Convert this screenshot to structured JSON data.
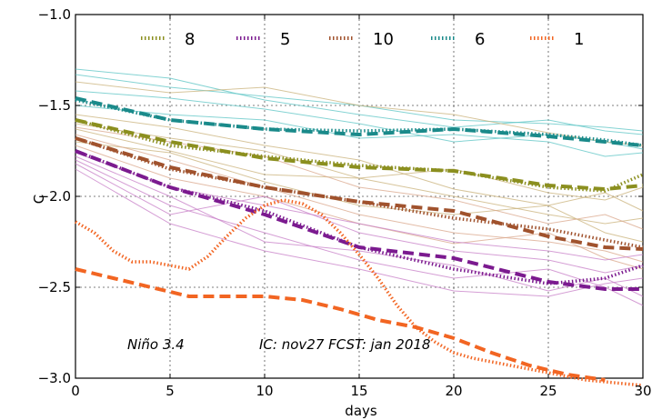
{
  "chart_data": {
    "type": "line",
    "xlabel": "days",
    "ylabel": "C",
    "xlim": [
      0,
      30
    ],
    "ylim": [
      -3.0,
      -1.0
    ],
    "xticks": [
      0,
      5,
      10,
      15,
      20,
      25,
      30
    ],
    "yticks": [
      -1.0,
      -1.5,
      -2.0,
      -2.5,
      -3.0
    ],
    "xtick_labels": [
      "0",
      "5",
      "10",
      "15",
      "20",
      "25",
      "30"
    ],
    "ytick_labels": [
      "−1.0",
      "−1.5",
      "−2.0",
      "−2.5",
      "−3.0"
    ],
    "grid": true,
    "legend_position": "top",
    "annotations": [
      "Niño 3.4",
      "IC: nov27  FCST: jan 2018"
    ],
    "series": [
      {
        "name": "8",
        "color": "#8b8f1f",
        "x": [
          0,
          5,
          10,
          15,
          20,
          25,
          28,
          30
        ],
        "dotted": [
          -1.58,
          -1.72,
          -1.78,
          -1.83,
          -1.86,
          -1.95,
          -1.97,
          -1.88
        ],
        "dashed": [
          -1.58,
          -1.7,
          -1.79,
          -1.84,
          -1.86,
          -1.94,
          -1.96,
          -1.94
        ]
      },
      {
        "name": "5",
        "color": "#7b1a8f",
        "x": [
          0,
          5,
          10,
          15,
          20,
          25,
          28,
          30
        ],
        "dotted": [
          -1.75,
          -1.95,
          -2.08,
          -2.28,
          -2.4,
          -2.48,
          -2.45,
          -2.38
        ],
        "dashed": [
          -1.75,
          -1.95,
          -2.1,
          -2.28,
          -2.34,
          -2.47,
          -2.51,
          -2.51
        ]
      },
      {
        "name": "10",
        "color": "#a0522d",
        "x": [
          0,
          5,
          10,
          15,
          20,
          25,
          28,
          30
        ],
        "dotted": [
          -1.68,
          -1.85,
          -1.95,
          -2.03,
          -2.12,
          -2.18,
          -2.24,
          -2.28
        ],
        "dashed": [
          -1.68,
          -1.84,
          -1.95,
          -2.03,
          -2.08,
          -2.22,
          -2.28,
          -2.29
        ]
      },
      {
        "name": "6",
        "color": "#1a8a8a",
        "x": [
          0,
          5,
          10,
          15,
          20,
          25,
          28,
          30
        ],
        "dotted": [
          -1.47,
          -1.58,
          -1.63,
          -1.64,
          -1.63,
          -1.66,
          -1.69,
          -1.72
        ],
        "dashed": [
          -1.46,
          -1.58,
          -1.63,
          -1.66,
          -1.63,
          -1.67,
          -1.7,
          -1.72
        ]
      },
      {
        "name": "1",
        "color": "#f26522",
        "x": [
          0,
          1,
          2,
          3,
          4,
          5,
          6,
          7,
          8,
          9,
          10,
          11,
          12,
          13,
          14,
          15,
          16,
          17,
          18,
          19,
          20,
          21,
          22,
          23,
          24,
          25,
          26,
          27,
          28,
          29,
          30
        ],
        "dotted": [
          -2.14,
          -2.2,
          -2.3,
          -2.36,
          -2.36,
          -2.38,
          -2.4,
          -2.33,
          -2.22,
          -2.12,
          -2.05,
          -2.02,
          -2.04,
          -2.1,
          -2.2,
          -2.32,
          -2.45,
          -2.6,
          -2.72,
          -2.8,
          -2.86,
          -2.89,
          -2.91,
          -2.93,
          -2.95,
          -2.97,
          -2.99,
          -3.01,
          -3.02,
          -3.03,
          -3.04
        ],
        "dashed_x": [
          0,
          2,
          4,
          6,
          8,
          10,
          12,
          14,
          16,
          18,
          20,
          22,
          24,
          26,
          28
        ],
        "dashed": [
          -2.4,
          -2.45,
          -2.5,
          -2.55,
          -2.55,
          -2.55,
          -2.57,
          -2.62,
          -2.68,
          -2.72,
          -2.78,
          -2.86,
          -2.93,
          -2.98,
          -3.01
        ]
      }
    ],
    "ensemble_members": [
      {
        "color": "#5bc4c4",
        "y": [
          -1.33,
          -1.4,
          -1.45,
          -1.5,
          -1.58,
          -1.6,
          -1.62,
          -1.64
        ]
      },
      {
        "color": "#5bc4c4",
        "y": [
          -1.3,
          -1.35,
          -1.47,
          -1.55,
          -1.62,
          -1.58,
          -1.64,
          -1.66
        ]
      },
      {
        "color": "#5bc4c4",
        "y": [
          -1.42,
          -1.46,
          -1.52,
          -1.6,
          -1.7,
          -1.66,
          -1.7,
          -1.74
        ]
      },
      {
        "color": "#5bc4c4",
        "y": [
          -1.5,
          -1.55,
          -1.58,
          -1.68,
          -1.66,
          -1.7,
          -1.78,
          -1.76
        ]
      },
      {
        "color": "#c9b27a",
        "y": [
          -1.37,
          -1.43,
          -1.4,
          -1.5,
          -1.55,
          -1.65,
          -1.7,
          -1.72
        ]
      },
      {
        "color": "#c9b27a",
        "y": [
          -1.6,
          -1.68,
          -1.75,
          -1.9,
          -1.85,
          -1.98,
          -2.02,
          -1.95
        ]
      },
      {
        "color": "#c9b27a",
        "y": [
          -1.55,
          -1.62,
          -1.72,
          -1.8,
          -1.96,
          -2.05,
          -1.98,
          -2.08
        ]
      },
      {
        "color": "#c9b27a",
        "y": [
          -1.63,
          -1.75,
          -1.88,
          -1.9,
          -2.0,
          -2.1,
          -2.15,
          -2.12
        ]
      },
      {
        "color": "#c9b27a",
        "y": [
          -1.7,
          -1.76,
          -1.92,
          -2.05,
          -2.1,
          -2.05,
          -2.2,
          -2.25
        ]
      },
      {
        "color": "#d9a68a",
        "y": [
          -1.66,
          -1.8,
          -1.95,
          -2.1,
          -2.2,
          -2.25,
          -2.3,
          -2.36
        ]
      },
      {
        "color": "#d9a68a",
        "y": [
          -1.72,
          -1.9,
          -2.0,
          -2.15,
          -2.26,
          -2.2,
          -2.34,
          -2.4
        ]
      },
      {
        "color": "#d9a68a",
        "y": [
          -1.62,
          -1.7,
          -1.78,
          -1.95,
          -2.02,
          -2.15,
          -2.1,
          -2.18
        ]
      },
      {
        "color": "#c77dc7",
        "y": [
          -1.8,
          -2.05,
          -2.2,
          -2.35,
          -2.45,
          -2.4,
          -2.5,
          -2.6
        ]
      },
      {
        "color": "#c77dc7",
        "y": [
          -1.78,
          -2.0,
          -2.25,
          -2.3,
          -2.38,
          -2.52,
          -2.45,
          -2.55
        ]
      },
      {
        "color": "#c77dc7",
        "y": [
          -1.82,
          -2.1,
          -2.0,
          -2.2,
          -2.3,
          -2.35,
          -2.42,
          -2.38
        ]
      },
      {
        "color": "#c77dc7",
        "y": [
          -1.85,
          -2.15,
          -2.3,
          -2.4,
          -2.52,
          -2.55,
          -2.48,
          -2.45
        ]
      },
      {
        "color": "#c77dc7",
        "y": [
          -1.76,
          -1.95,
          -2.05,
          -2.15,
          -2.25,
          -2.3,
          -2.35,
          -2.32
        ]
      }
    ]
  }
}
